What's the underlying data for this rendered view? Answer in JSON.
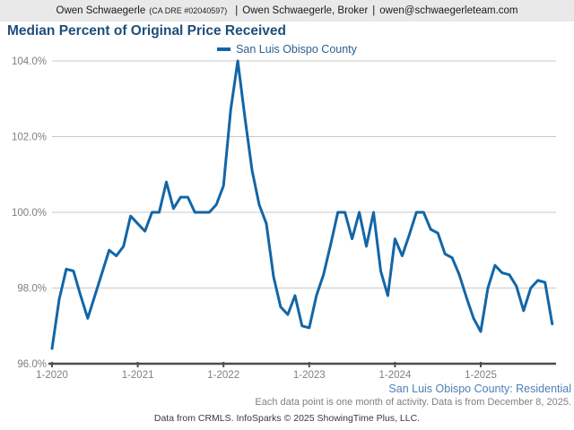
{
  "header": {
    "agent_name": "Owen Schwaegerle",
    "license": "(CA DRE #02040597)",
    "divider": "|",
    "broker_title": "Owen Schwaegerle, Broker",
    "email": "owen@schwaegerleteam.com"
  },
  "footer": {
    "series_note": "San Luis Obispo County: Residential",
    "data_note": "Each data point is one month of activity. Data is from December 8, 2025.",
    "attribution": "Data from CRMLS. InfoSparks © 2025 ShowingTime Plus, LLC."
  },
  "colors": {
    "header_bg": "#e9e9e9",
    "title": "#1d4e7c",
    "legend_text": "#2d5f8e",
    "context": "#4d7fb5",
    "muted": "#7f7f7f",
    "attribution": "#3a3a3a",
    "gridline": "#c9c9c9",
    "axis": "#4d4d4d",
    "line": "#1266a7"
  },
  "chart_data": {
    "type": "line",
    "title": "Median Percent of Original Price Received",
    "ylabel": "",
    "xlabel": "",
    "ylim": [
      96.0,
      104.0
    ],
    "grid": "horizontal",
    "legend_position": "top-center",
    "y_ticks": [
      96.0,
      98.0,
      100.0,
      102.0,
      104.0
    ],
    "y_tick_labels": [
      "96.0%",
      "98.0%",
      "100.0%",
      "102.0%",
      "104.0%"
    ],
    "x_tick_months": [
      0,
      12,
      24,
      36,
      48,
      60
    ],
    "x_tick_labels": [
      "1-2020",
      "1-2021",
      "1-2022",
      "1-2023",
      "1-2024",
      "1-2025"
    ],
    "categories": [
      "1-2020",
      "2-2020",
      "3-2020",
      "4-2020",
      "5-2020",
      "6-2020",
      "7-2020",
      "8-2020",
      "9-2020",
      "10-2020",
      "11-2020",
      "12-2020",
      "1-2021",
      "2-2021",
      "3-2021",
      "4-2021",
      "5-2021",
      "6-2021",
      "7-2021",
      "8-2021",
      "9-2021",
      "10-2021",
      "11-2021",
      "12-2021",
      "1-2022",
      "2-2022",
      "3-2022",
      "4-2022",
      "5-2022",
      "6-2022",
      "7-2022",
      "8-2022",
      "9-2022",
      "10-2022",
      "11-2022",
      "12-2022",
      "1-2023",
      "2-2023",
      "3-2023",
      "4-2023",
      "5-2023",
      "6-2023",
      "7-2023",
      "8-2023",
      "9-2023",
      "10-2023",
      "11-2023",
      "12-2023",
      "1-2024",
      "2-2024",
      "3-2024",
      "4-2024",
      "5-2024",
      "6-2024",
      "7-2024",
      "8-2024",
      "9-2024",
      "10-2024",
      "11-2024",
      "12-2024",
      "1-2025",
      "2-2025",
      "3-2025",
      "4-2025",
      "5-2025",
      "6-2025",
      "7-2025",
      "8-2025",
      "9-2025",
      "10-2025",
      "11-2025"
    ],
    "series": [
      {
        "name": "San Luis Obispo County",
        "color": "#1266a7",
        "values": [
          96.4,
          97.7,
          98.5,
          98.45,
          97.8,
          97.2,
          97.8,
          98.4,
          99.0,
          98.85,
          99.1,
          99.9,
          99.7,
          99.5,
          100.0,
          100.0,
          100.8,
          100.1,
          100.4,
          100.4,
          100.0,
          100.0,
          100.0,
          100.2,
          100.7,
          102.7,
          104.0,
          102.5,
          101.1,
          100.2,
          99.7,
          98.3,
          97.5,
          97.3,
          97.8,
          97.0,
          96.95,
          97.8,
          98.35,
          99.15,
          100.0,
          100.0,
          99.3,
          100.0,
          99.1,
          100.0,
          98.45,
          97.8,
          99.3,
          98.85,
          99.4,
          100.0,
          100.0,
          99.55,
          99.45,
          98.9,
          98.8,
          98.35,
          97.75,
          97.2,
          96.85,
          98.0,
          98.6,
          98.4,
          98.35,
          98.05,
          97.4,
          98.0,
          98.2,
          98.15,
          97.05
        ]
      }
    ]
  }
}
